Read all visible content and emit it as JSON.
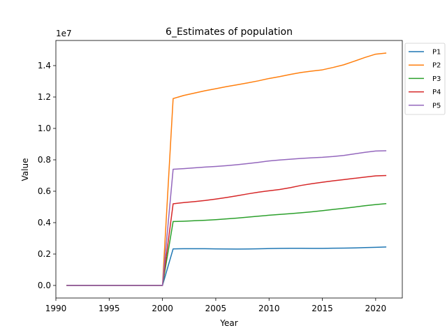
{
  "chart_data": {
    "type": "line",
    "title": "6_Estimates of population",
    "xlabel": "Year",
    "ylabel": "Value",
    "offset_label": "1e7",
    "xlim": [
      1990,
      2022.5
    ],
    "ylim": [
      -800000,
      15600000
    ],
    "xticks": [
      1990,
      1995,
      2000,
      2005,
      2010,
      2015,
      2020
    ],
    "yticks": [
      0.0,
      0.2,
      0.4,
      0.6,
      0.8,
      1.0,
      1.2,
      1.4
    ],
    "ytick_multiplier": 10000000,
    "legend_position": "upper-right-outside",
    "grid": false,
    "x": [
      1991,
      1992,
      1993,
      1994,
      1995,
      1996,
      1997,
      1998,
      1999,
      2000,
      2001,
      2002,
      2003,
      2004,
      2005,
      2006,
      2007,
      2008,
      2009,
      2010,
      2011,
      2012,
      2013,
      2014,
      2015,
      2016,
      2017,
      2018,
      2019,
      2020,
      2021
    ],
    "series": [
      {
        "name": "P1",
        "color": "#1f77b4",
        "values": [
          0,
          0,
          0,
          0,
          0,
          0,
          0,
          0,
          0,
          0,
          2330000,
          2340000,
          2340000,
          2340000,
          2330000,
          2320000,
          2315000,
          2320000,
          2335000,
          2350000,
          2360000,
          2365000,
          2365000,
          2360000,
          2360000,
          2370000,
          2380000,
          2390000,
          2410000,
          2430000,
          2450000
        ]
      },
      {
        "name": "P2",
        "color": "#ff7f0e",
        "values": [
          0,
          0,
          0,
          0,
          0,
          0,
          0,
          0,
          0,
          0,
          11900000,
          12100000,
          12250000,
          12400000,
          12530000,
          12660000,
          12780000,
          12900000,
          13030000,
          13180000,
          13300000,
          13440000,
          13560000,
          13650000,
          13730000,
          13880000,
          14050000,
          14280000,
          14520000,
          14730000,
          14800000
        ]
      },
      {
        "name": "P3",
        "color": "#2ca02c",
        "values": [
          0,
          0,
          0,
          0,
          0,
          0,
          0,
          0,
          0,
          0,
          4070000,
          4090000,
          4120000,
          4150000,
          4190000,
          4240000,
          4290000,
          4350000,
          4410000,
          4470000,
          4520000,
          4570000,
          4630000,
          4690000,
          4760000,
          4840000,
          4910000,
          4990000,
          5080000,
          5150000,
          5210000
        ]
      },
      {
        "name": "P4",
        "color": "#d62728",
        "values": [
          0,
          0,
          0,
          0,
          0,
          0,
          0,
          0,
          0,
          0,
          5200000,
          5280000,
          5340000,
          5410000,
          5500000,
          5600000,
          5710000,
          5830000,
          5940000,
          6030000,
          6110000,
          6230000,
          6370000,
          6480000,
          6570000,
          6660000,
          6740000,
          6820000,
          6900000,
          6980000,
          7000000
        ]
      },
      {
        "name": "P5",
        "color": "#9467bd",
        "values": [
          0,
          0,
          0,
          0,
          0,
          0,
          0,
          0,
          0,
          0,
          7400000,
          7440000,
          7490000,
          7540000,
          7580000,
          7630000,
          7690000,
          7760000,
          7840000,
          7930000,
          7990000,
          8040000,
          8090000,
          8130000,
          8160000,
          8210000,
          8280000,
          8380000,
          8480000,
          8560000,
          8580000
        ]
      }
    ]
  }
}
